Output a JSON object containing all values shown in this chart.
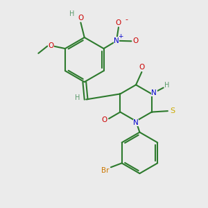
{
  "background_color": "#ebebeb",
  "bond_color": "#2d7a2d",
  "bond_width": 1.5,
  "atom_colors": {
    "C": "#2d7a2d",
    "H": "#5a9a6a",
    "O": "#cc0000",
    "N": "#0000cc",
    "S": "#ccaa00",
    "Br": "#cc7700"
  },
  "figsize": [
    3.0,
    3.0
  ],
  "dpi": 100
}
